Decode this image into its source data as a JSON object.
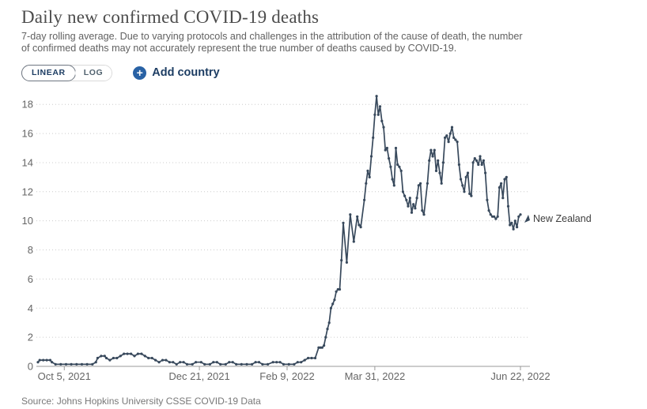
{
  "header": {
    "title": "Daily new confirmed COVID-19 deaths",
    "subtitle": "7-day rolling average. Due to varying protocols and challenges in the attribution of the cause of death, the number of confirmed deaths may not accurately represent the true number of deaths caused by COVID-19."
  },
  "controls": {
    "linear_label": "LINEAR",
    "log_label": "LOG",
    "add_icon": "+",
    "add_country_label": "Add country",
    "accent_blue": "#2962a5",
    "text_blue": "#1d3d63"
  },
  "footer": {
    "source": "Source: Johns Hopkins University CSSE COVID-19 Data"
  },
  "chart_data": {
    "type": "line",
    "title": "Daily new confirmed COVID-19 deaths",
    "ylabel": "",
    "xlabel": "",
    "grid": "dotted horizontal gridlines, legend as end-of-line label",
    "y_ticks": [
      0,
      2,
      4,
      6,
      8,
      10,
      12,
      14,
      16,
      18
    ],
    "ylim": [
      0,
      19
    ],
    "xlim_days": [
      0,
      275
    ],
    "x_ticks": [
      {
        "day": 15,
        "label": "Oct 5, 2021"
      },
      {
        "day": 92,
        "label": "Dec 21, 2021"
      },
      {
        "day": 142,
        "label": "Feb 9, 2022"
      },
      {
        "day": 192,
        "label": "Mar 31, 2022"
      },
      {
        "day": 275,
        "label": "Jun 22, 2022"
      }
    ],
    "end_label": "New Zealand",
    "series": [
      {
        "name": "New Zealand",
        "color": "#38495c",
        "points": [
          [
            0,
            0.29
          ],
          [
            1,
            0.43
          ],
          [
            3,
            0.43
          ],
          [
            5,
            0.43
          ],
          [
            7,
            0.43
          ],
          [
            8,
            0.29
          ],
          [
            10,
            0.14
          ],
          [
            13,
            0.14
          ],
          [
            16,
            0.14
          ],
          [
            19,
            0.14
          ],
          [
            22,
            0.14
          ],
          [
            25,
            0.14
          ],
          [
            28,
            0.14
          ],
          [
            31,
            0.14
          ],
          [
            33,
            0.29
          ],
          [
            34,
            0.57
          ],
          [
            36,
            0.71
          ],
          [
            38,
            0.71
          ],
          [
            39,
            0.57
          ],
          [
            41,
            0.43
          ],
          [
            43,
            0.57
          ],
          [
            45,
            0.57
          ],
          [
            47,
            0.71
          ],
          [
            49,
            0.86
          ],
          [
            51,
            0.86
          ],
          [
            53,
            0.86
          ],
          [
            55,
            0.71
          ],
          [
            57,
            0.86
          ],
          [
            59,
            0.86
          ],
          [
            61,
            0.71
          ],
          [
            63,
            0.57
          ],
          [
            65,
            0.57
          ],
          [
            67,
            0.43
          ],
          [
            69,
            0.29
          ],
          [
            71,
            0.43
          ],
          [
            73,
            0.43
          ],
          [
            75,
            0.29
          ],
          [
            77,
            0.29
          ],
          [
            79,
            0.14
          ],
          [
            81,
            0.29
          ],
          [
            83,
            0.29
          ],
          [
            85,
            0.14
          ],
          [
            88,
            0.14
          ],
          [
            90,
            0.29
          ],
          [
            93,
            0.29
          ],
          [
            95,
            0.14
          ],
          [
            98,
            0.14
          ],
          [
            100,
            0.29
          ],
          [
            102,
            0.29
          ],
          [
            104,
            0.14
          ],
          [
            107,
            0.14
          ],
          [
            109,
            0.29
          ],
          [
            111,
            0.29
          ],
          [
            113,
            0.14
          ],
          [
            116,
            0.14
          ],
          [
            119,
            0.14
          ],
          [
            122,
            0.14
          ],
          [
            124,
            0.29
          ],
          [
            126,
            0.29
          ],
          [
            128,
            0.14
          ],
          [
            131,
            0.14
          ],
          [
            134,
            0.29
          ],
          [
            136,
            0.29
          ],
          [
            138,
            0.29
          ],
          [
            140,
            0.14
          ],
          [
            143,
            0.14
          ],
          [
            146,
            0.14
          ],
          [
            148,
            0.29
          ],
          [
            150,
            0.29
          ],
          [
            152,
            0.43
          ],
          [
            154,
            0.57
          ],
          [
            156,
            0.57
          ],
          [
            158,
            0.57
          ],
          [
            160,
            1.29
          ],
          [
            161,
            1.29
          ],
          [
            162,
            1.29
          ],
          [
            163,
            1.43
          ],
          [
            164,
            2.0
          ],
          [
            165,
            2.57
          ],
          [
            166,
            3.0
          ],
          [
            167,
            4.0
          ],
          [
            168,
            4.29
          ],
          [
            169,
            4.57
          ],
          [
            170,
            5.14
          ],
          [
            171,
            5.29
          ],
          [
            172,
            5.29
          ],
          [
            173,
            7.29
          ],
          [
            174,
            9.86
          ],
          [
            176,
            7.14
          ],
          [
            178,
            10.43
          ],
          [
            180,
            8.57
          ],
          [
            182,
            10.29
          ],
          [
            183,
            9.71
          ],
          [
            184,
            9.57
          ],
          [
            186,
            11.43
          ],
          [
            187,
            12.57
          ],
          [
            188,
            13.43
          ],
          [
            189,
            13.0
          ],
          [
            190,
            14.43
          ],
          [
            191,
            15.71
          ],
          [
            192,
            17.29
          ],
          [
            193,
            18.57
          ],
          [
            194,
            17.29
          ],
          [
            195,
            17.86
          ],
          [
            196,
            16.86
          ],
          [
            197,
            16.43
          ],
          [
            198,
            14.86
          ],
          [
            199,
            15.0
          ],
          [
            200,
            14.29
          ],
          [
            201,
            13.71
          ],
          [
            202,
            12.86
          ],
          [
            203,
            12.43
          ],
          [
            204,
            15.0
          ],
          [
            205,
            13.86
          ],
          [
            206,
            13.71
          ],
          [
            207,
            13.43
          ],
          [
            208,
            12.0
          ],
          [
            209,
            11.71
          ],
          [
            210,
            11.43
          ],
          [
            211,
            11.0
          ],
          [
            212,
            11.57
          ],
          [
            213,
            10.57
          ],
          [
            214,
            11.14
          ],
          [
            215,
            10.86
          ],
          [
            216,
            11.57
          ],
          [
            217,
            12.43
          ],
          [
            218,
            12.57
          ],
          [
            219,
            10.71
          ],
          [
            220,
            10.43
          ],
          [
            222,
            12.57
          ],
          [
            223,
            14.14
          ],
          [
            224,
            14.86
          ],
          [
            225,
            14.43
          ],
          [
            226,
            14.86
          ],
          [
            227,
            13.43
          ],
          [
            228,
            14.14
          ],
          [
            229,
            13.29
          ],
          [
            230,
            12.57
          ],
          [
            231,
            14.0
          ],
          [
            232,
            15.71
          ],
          [
            233,
            15.86
          ],
          [
            234,
            15.43
          ],
          [
            235,
            16.0
          ],
          [
            236,
            16.43
          ],
          [
            237,
            15.71
          ],
          [
            238,
            15.57
          ],
          [
            239,
            15.43
          ],
          [
            240,
            13.86
          ],
          [
            241,
            12.86
          ],
          [
            242,
            12.43
          ],
          [
            243,
            12.0
          ],
          [
            244,
            13.0
          ],
          [
            245,
            13.29
          ],
          [
            246,
            11.86
          ],
          [
            247,
            11.71
          ],
          [
            248,
            14.0
          ],
          [
            249,
            14.29
          ],
          [
            250,
            14.14
          ],
          [
            251,
            13.86
          ],
          [
            252,
            14.43
          ],
          [
            253,
            13.86
          ],
          [
            254,
            14.14
          ],
          [
            255,
            13.29
          ],
          [
            256,
            11.43
          ],
          [
            257,
            10.71
          ],
          [
            258,
            10.43
          ],
          [
            259,
            10.29
          ],
          [
            260,
            10.29
          ],
          [
            261,
            10.14
          ],
          [
            262,
            10.29
          ],
          [
            263,
            12.29
          ],
          [
            264,
            12.57
          ],
          [
            265,
            11.57
          ],
          [
            266,
            12.86
          ],
          [
            267,
            13.0
          ],
          [
            268,
            11.0
          ],
          [
            269,
            9.71
          ],
          [
            270,
            9.86
          ],
          [
            271,
            9.43
          ],
          [
            272,
            10.0
          ],
          [
            273,
            9.57
          ],
          [
            274,
            10.29
          ],
          [
            275,
            10.43
          ]
        ]
      }
    ]
  }
}
